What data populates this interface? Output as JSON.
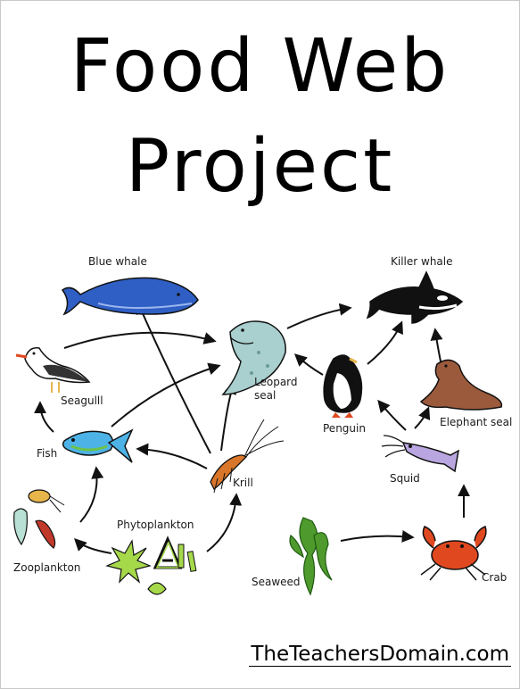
{
  "title_line1": "Food Web",
  "title_line2": "Project",
  "organisms": {
    "blue_whale": "Blue whale",
    "killer_whale": "Killer whale",
    "leopard_seal_line1": "Leopard",
    "leopard_seal_line2": "seal",
    "seagull": "Seagulll",
    "penguin": "Penguin",
    "elephant_seal": "Elephant seal",
    "fish": "Fish",
    "krill": "Krill",
    "squid": "Squid",
    "phytoplankton": "Phytoplankton",
    "zooplankton": "Zooplankton",
    "seaweed": "Seaweed",
    "crab": "Crab"
  },
  "brand": "TheTeachersDomain.com",
  "colors": {
    "ink": "#111111",
    "whale_blue": "#2f5fc4",
    "seal_teal": "#a9cfcf",
    "fish_blue": "#4db3e6",
    "crab_red": "#e0491f",
    "seaweed_green": "#4f9a2c",
    "elephant_seal_brown": "#9c5a3c"
  }
}
